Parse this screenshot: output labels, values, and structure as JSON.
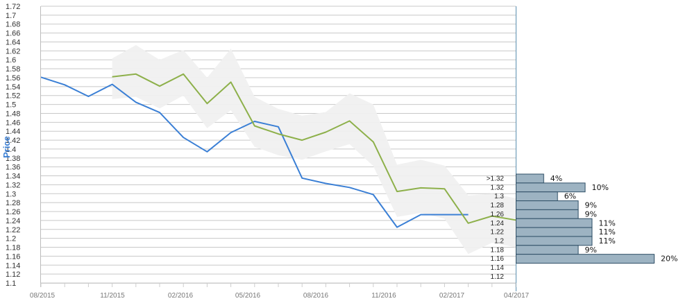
{
  "chart_data": {
    "type": "line",
    "ylabel": "Price",
    "ylim": [
      1.1,
      1.72
    ],
    "y_ticks": [
      "1.1",
      "1.12",
      "1.14",
      "1.16",
      "1.18",
      "1.2",
      "1.22",
      "1.24",
      "1.26",
      "1.28",
      "1.3",
      "1.32",
      "1.34",
      "1.36",
      "1.38",
      "1.4",
      "1.42",
      "1.44",
      "1.46",
      "1.48",
      "1.5",
      "1.52",
      "1.54",
      "1.56",
      "1.58",
      "1.6",
      "1.62",
      "1.64",
      "1.66",
      "1.68",
      "1.7",
      "1.72"
    ],
    "x_ticks": [
      "08/2015",
      "11/2015",
      "02/2016",
      "05/2016",
      "08/2016",
      "11/2016",
      "02/2017",
      "04/2017"
    ],
    "x_months": [
      "2015-08",
      "2015-09",
      "2015-10",
      "2015-11",
      "2015-12",
      "2016-01",
      "2016-02",
      "2016-03",
      "2016-04",
      "2016-05",
      "2016-06",
      "2016-07",
      "2016-08",
      "2016-09",
      "2016-10",
      "2016-11",
      "2016-12",
      "2017-01",
      "2017-02",
      "2017-03",
      "2017-04"
    ],
    "grid": true,
    "series": [
      {
        "color": "#3a7fd5",
        "x": [
          "2015-08",
          "2015-09",
          "2015-10",
          "2015-11",
          "2015-12",
          "2016-01",
          "2016-02",
          "2016-03",
          "2016-04",
          "2016-05",
          "2016-06",
          "2016-07",
          "2016-08",
          "2016-09",
          "2016-10",
          "2016-11",
          "2016-12",
          "2017-01",
          "2017-02"
        ],
        "values": [
          1.561,
          1.544,
          1.518,
          1.545,
          1.505,
          1.482,
          1.426,
          1.394,
          1.437,
          1.462,
          1.45,
          1.335,
          1.323,
          1.314,
          1.298,
          1.225,
          1.253,
          1.253,
          1.253
        ]
      },
      {
        "color": "#8db04a",
        "x": [
          "2015-11",
          "2015-12",
          "2016-01",
          "2016-02",
          "2016-03",
          "2016-04",
          "2016-05",
          "2016-06",
          "2016-07",
          "2016-08",
          "2016-09",
          "2016-10",
          "2016-11",
          "2016-12",
          "2017-01",
          "2017-02",
          "2017-03",
          "2017-04"
        ],
        "values": [
          1.562,
          1.568,
          1.541,
          1.568,
          1.502,
          1.55,
          1.452,
          1.434,
          1.42,
          1.438,
          1.463,
          1.416,
          1.305,
          1.313,
          1.311,
          1.234,
          1.25,
          1.241
        ]
      }
    ],
    "band": {
      "color": "#f0f0f0",
      "x": [
        "2015-11",
        "2015-12",
        "2016-01",
        "2016-02",
        "2016-03",
        "2016-04",
        "2016-05",
        "2016-06",
        "2016-07",
        "2016-08",
        "2016-09",
        "2016-10",
        "2016-11",
        "2016-12",
        "2017-01",
        "2017-02",
        "2017-03",
        "2017-04"
      ],
      "upper": [
        1.603,
        1.633,
        1.6,
        1.622,
        1.56,
        1.625,
        1.517,
        1.49,
        1.475,
        1.483,
        1.525,
        1.5,
        1.365,
        1.376,
        1.363,
        1.296,
        1.3,
        1.29
      ],
      "lower": [
        1.512,
        1.517,
        1.491,
        1.52,
        1.447,
        1.487,
        1.405,
        1.386,
        1.376,
        1.395,
        1.411,
        1.362,
        1.248,
        1.257,
        1.244,
        1.165,
        1.19,
        1.18
      ]
    },
    "distribution": {
      "color": "#9db3c2",
      "bins": [
        {
          "label": ">1.32",
          "percent": 4,
          "percent_label": "4%"
        },
        {
          "label": "1.32",
          "percent": 10,
          "percent_label": "10%"
        },
        {
          "label": "1.3",
          "percent": 6,
          "percent_label": "6%"
        },
        {
          "label": "1.28",
          "percent": 9,
          "percent_label": "9%"
        },
        {
          "label": "1.26",
          "percent": 9,
          "percent_label": "9%"
        },
        {
          "label": "1.24",
          "percent": 11,
          "percent_label": "11%"
        },
        {
          "label": "1.22",
          "percent": 11,
          "percent_label": "11%"
        },
        {
          "label": "1.2",
          "percent": 11,
          "percent_label": "11%"
        },
        {
          "label": "1.18",
          "percent": 9,
          "percent_label": "9%"
        },
        {
          "label": "1.16",
          "percent": 20,
          "percent_label": "20%"
        },
        {
          "label": "1.14",
          "percent": null,
          "percent_label": ""
        },
        {
          "label": "1.12",
          "percent": null,
          "percent_label": ""
        }
      ]
    }
  }
}
